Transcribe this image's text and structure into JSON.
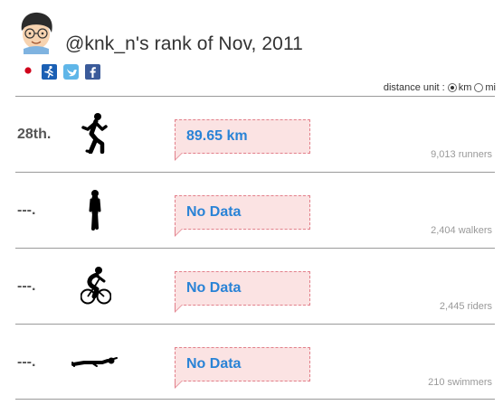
{
  "header": {
    "title": "@knk_n's rank of Nov, 2011",
    "icons": [
      "japan-flag-icon",
      "runner-app-icon",
      "twitter-icon",
      "facebook-icon"
    ],
    "colors": {
      "accent": "#2a83d6",
      "box_bg": "#fbe3e3",
      "box_border": "#e27f8a"
    }
  },
  "unit_selector": {
    "label": "distance unit :",
    "options": [
      {
        "label": "km",
        "selected": true
      },
      {
        "label": "mi",
        "selected": false
      }
    ]
  },
  "rows": [
    {
      "sport": "running",
      "rank": "28th.",
      "value": "89.65 km",
      "count": "9,013 runners"
    },
    {
      "sport": "walking",
      "rank": "---.",
      "value": "No Data",
      "count": "2,404 walkers"
    },
    {
      "sport": "cycling",
      "rank": "---.",
      "value": "No Data",
      "count": "2,445 riders"
    },
    {
      "sport": "swimming",
      "rank": "---.",
      "value": "No Data",
      "count": "210 swimmers"
    }
  ]
}
